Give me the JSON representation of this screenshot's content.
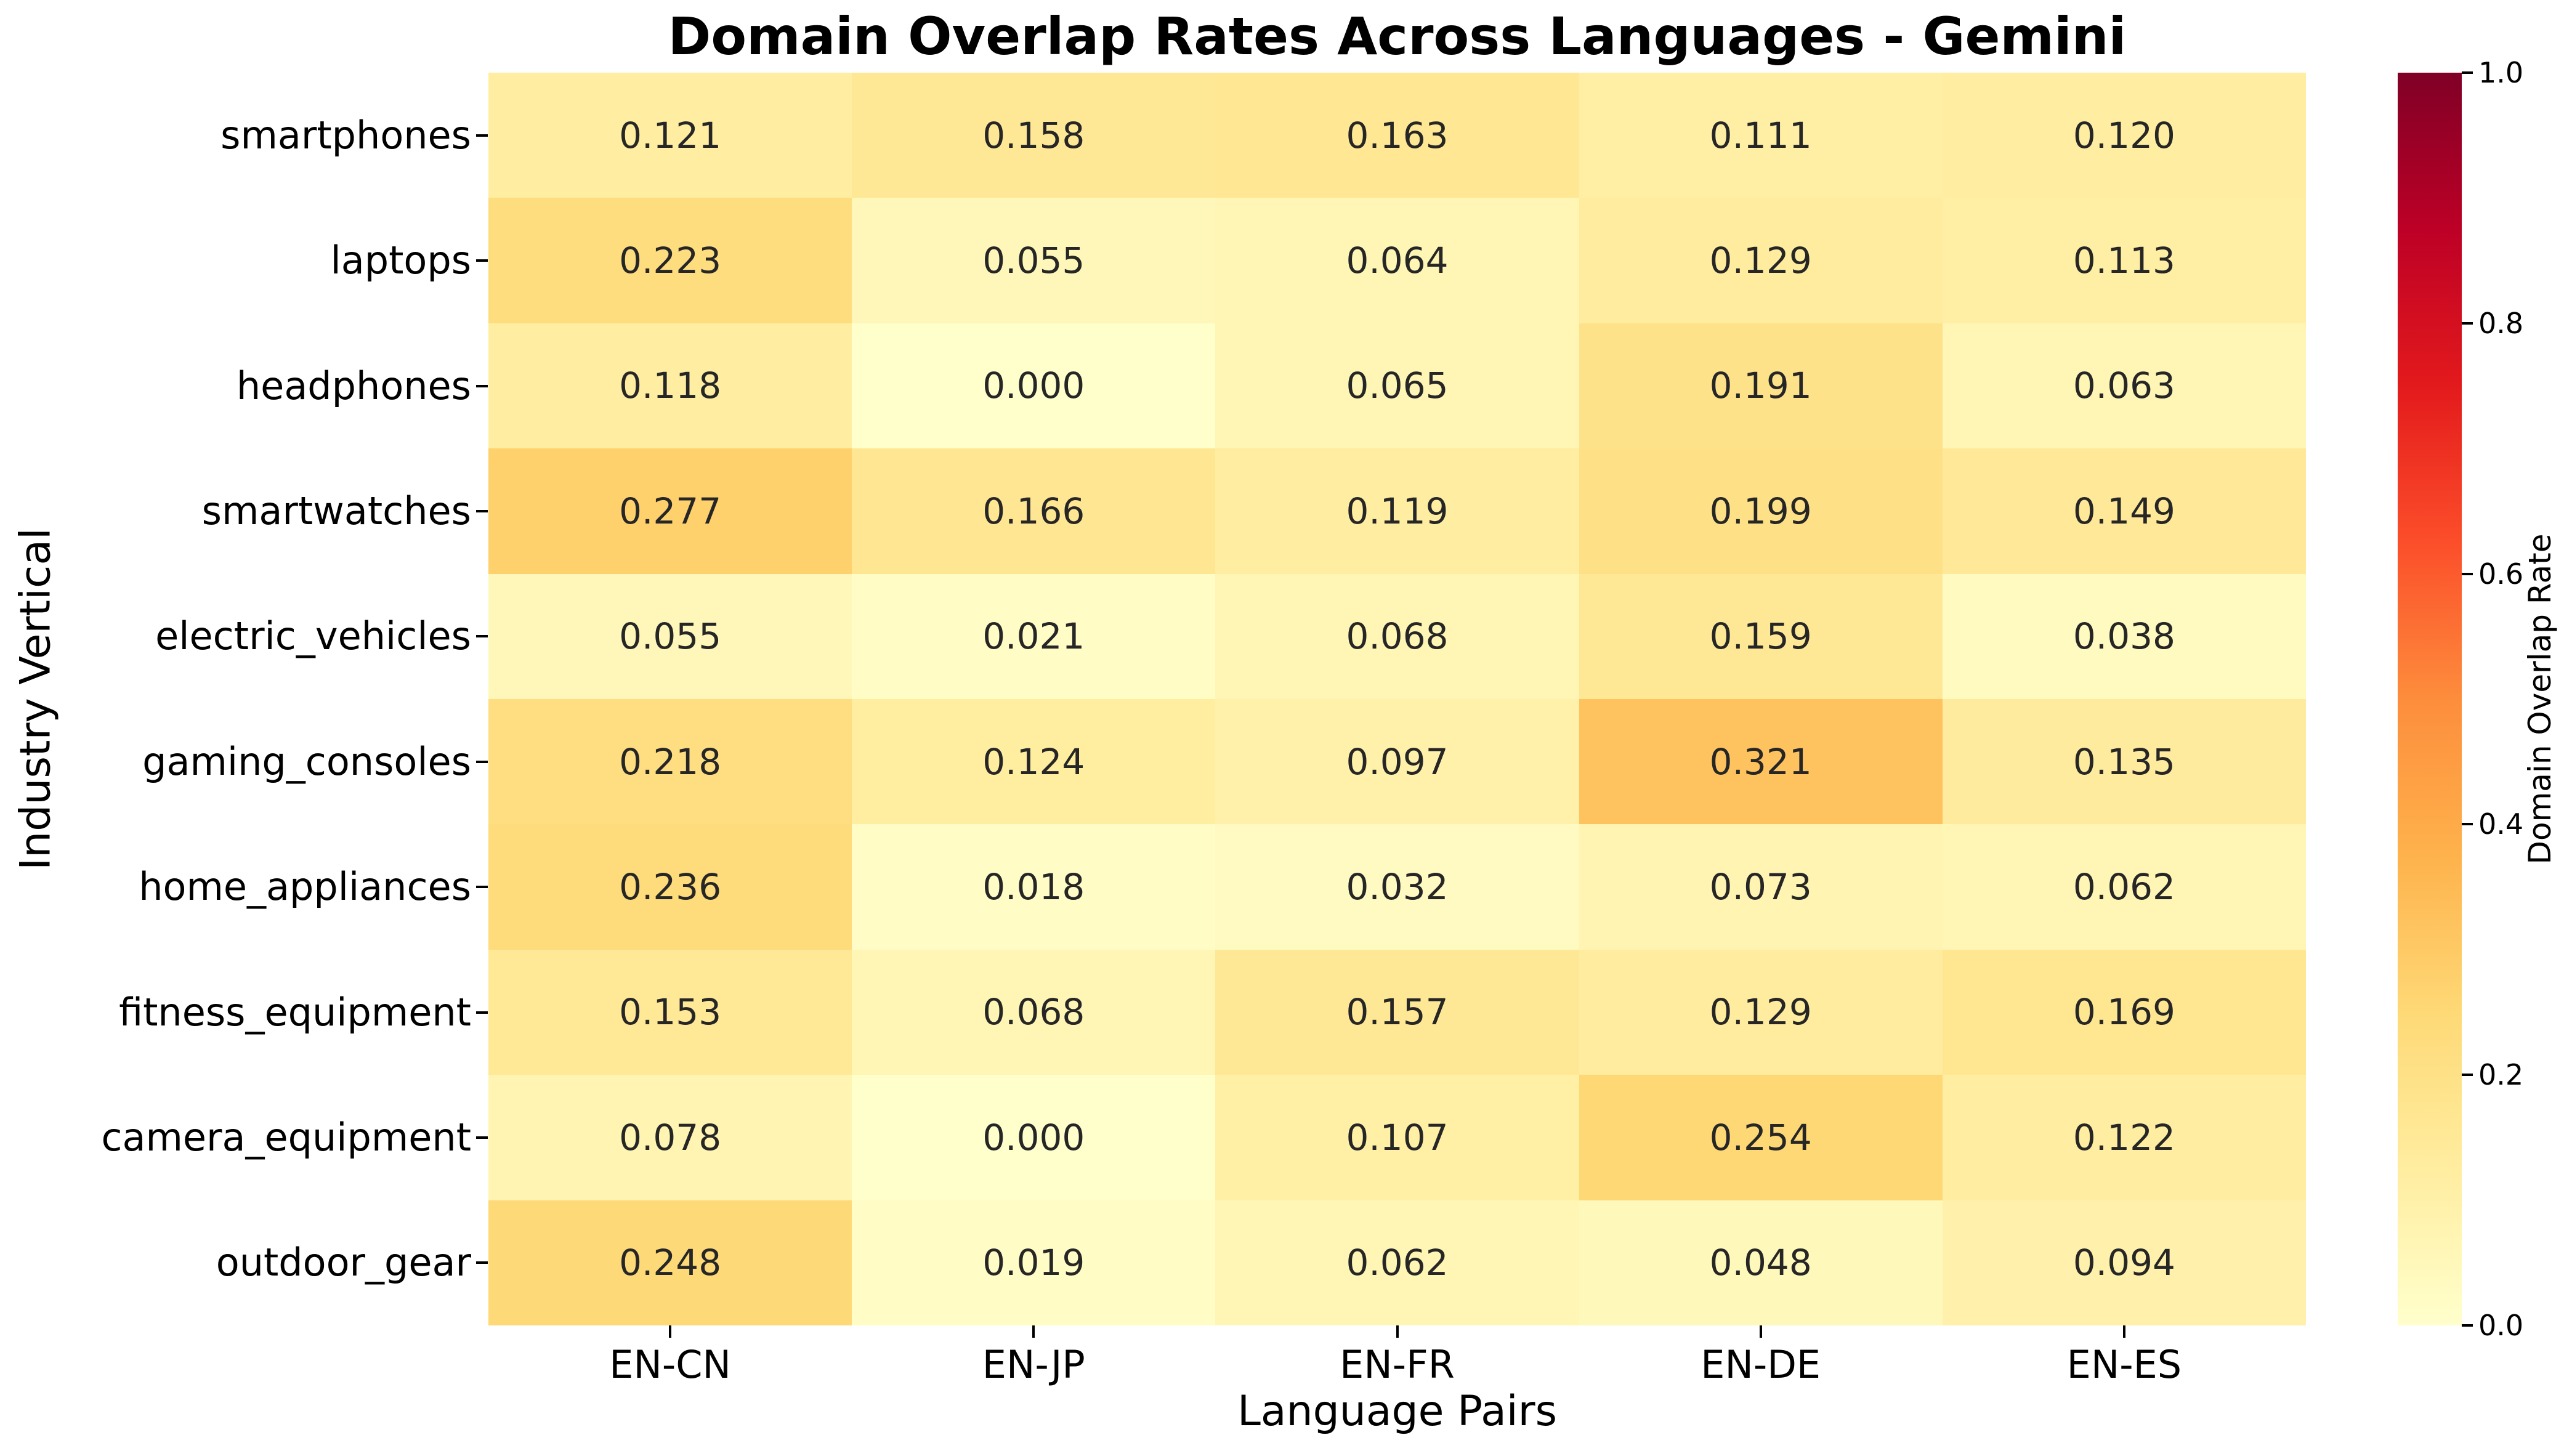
{
  "chart_data": {
    "type": "heatmap",
    "title": "Domain Overlap Rates Across Languages - Gemini",
    "xlabel": "Language Pairs",
    "ylabel": "Industry Vertical",
    "x_categories": [
      "EN-CN",
      "EN-JP",
      "EN-FR",
      "EN-DE",
      "EN-ES"
    ],
    "y_categories": [
      "smartphones",
      "laptops",
      "headphones",
      "smartwatches",
      "electric_vehicles",
      "gaming_consoles",
      "home_appliances",
      "fitness_equipment",
      "camera_equipment",
      "outdoor_gear"
    ],
    "values": [
      [
        0.121,
        0.158,
        0.163,
        0.111,
        0.12
      ],
      [
        0.223,
        0.055,
        0.064,
        0.129,
        0.113
      ],
      [
        0.118,
        0.0,
        0.065,
        0.191,
        0.063
      ],
      [
        0.277,
        0.166,
        0.119,
        0.199,
        0.149
      ],
      [
        0.055,
        0.021,
        0.068,
        0.159,
        0.038
      ],
      [
        0.218,
        0.124,
        0.097,
        0.321,
        0.135
      ],
      [
        0.236,
        0.018,
        0.032,
        0.073,
        0.062
      ],
      [
        0.153,
        0.068,
        0.157,
        0.129,
        0.169
      ],
      [
        0.078,
        0.0,
        0.107,
        0.254,
        0.122
      ],
      [
        0.248,
        0.019,
        0.062,
        0.048,
        0.094
      ]
    ],
    "value_decimals": 3,
    "grid": false,
    "colormap": "YlOrRd",
    "colorbar": {
      "label": "Domain Overlap Rate",
      "ticks": [
        0.0,
        0.2,
        0.4,
        0.6,
        0.8,
        1.0
      ],
      "vmin": 0.0,
      "vmax": 1.0,
      "position": "right"
    }
  },
  "colors": {
    "background": "#ffffff",
    "text": "#000000",
    "annotation_text": "#262626",
    "colormap_stops": [
      "#ffffcc",
      "#ffeda0",
      "#fed976",
      "#feb24c",
      "#fd8d3c",
      "#fc4e2a",
      "#e31a1c",
      "#bd0026",
      "#800026"
    ]
  }
}
